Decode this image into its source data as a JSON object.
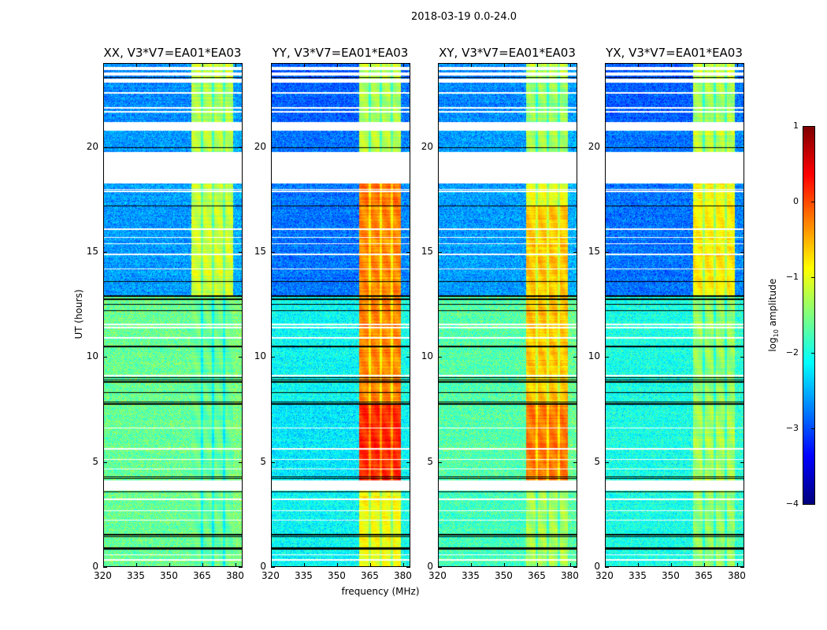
{
  "chart_data": {
    "type": "heatmap",
    "title": "2018-03-19 0.0-24.0",
    "xlabel": "frequency (MHz)",
    "ylabel": "UT (hours)",
    "xlim": [
      320,
      383.2
    ],
    "ylim": [
      0,
      24
    ],
    "xticks": [
      "320",
      "335",
      "350",
      "365",
      "380"
    ],
    "xtick_values": [
      320,
      335,
      350,
      365,
      380
    ],
    "yticks": [
      "0",
      "5",
      "10",
      "15",
      "20"
    ],
    "ytick_values": [
      0,
      5,
      10,
      15,
      20
    ],
    "colorbar": {
      "label_main": "log",
      "label_sub": "10",
      "label_rest": " amplitude",
      "range": [
        -4,
        1
      ],
      "ticks": [
        "1",
        "0",
        "−1",
        "−2",
        "−3",
        "−4"
      ],
      "tick_values": [
        1,
        0,
        -1,
        -2,
        -3,
        -4
      ],
      "colormap": "jet"
    },
    "panels": [
      {
        "title": "XX, V3*V7=EA01*EA03",
        "pol": "XX"
      },
      {
        "title": "YY, V3*V7=EA01*EA03",
        "pol": "YY"
      },
      {
        "title": "XY, V3*V7=EA01*EA03",
        "pol": "XY"
      },
      {
        "title": "YX, V3*V7=EA01*EA03",
        "pol": "YX"
      }
    ],
    "rfi_band_mhz": [
      360,
      379.3
    ],
    "rfi_subband_gaps_mhz": [
      365,
      370,
      375
    ],
    "segments": [
      {
        "t": [
          0,
          3.6
        ],
        "background": {
          "XX": -1.6,
          "YY": -2.1,
          "XY": -1.8,
          "YX": -2.0
        },
        "band": {
          "XX": -1.6,
          "YY": -0.9,
          "XY": -1.3,
          "YX": -1.4
        }
      },
      {
        "t": [
          4.1,
          7.8
        ],
        "background": {
          "XX": -1.6,
          "YY": -2.2,
          "XY": -1.7,
          "YX": -2.0
        },
        "band": {
          "XX": -1.6,
          "YY": 0.2,
          "XY": -0.2,
          "YX": -1.3
        }
      },
      {
        "t": [
          7.8,
          12.9
        ],
        "background": {
          "XX": -1.6,
          "YY": -2.1,
          "XY": -1.7,
          "YX": -2.0
        },
        "band": {
          "XX": -1.6,
          "YY": -0.3,
          "XY": -0.6,
          "YX": -1.4
        }
      },
      {
        "t": [
          12.9,
          17.2
        ],
        "background": {
          "XX": -2.6,
          "YY": -2.8,
          "XY": -2.6,
          "YX": -2.8
        },
        "band": {
          "XX": -1.1,
          "YY": -0.3,
          "XY": -0.6,
          "YX": -0.8
        }
      },
      {
        "t": [
          17.2,
          18.3
        ],
        "background": {
          "XX": -2.6,
          "YY": -2.8,
          "XY": -2.6,
          "YX": -2.8
        },
        "band": {
          "XX": -1.2,
          "YY": -0.2,
          "XY": -1.0,
          "YX": -0.9
        }
      },
      {
        "t": [
          19.8,
          20.8
        ],
        "background": {
          "XX": -2.6,
          "YY": -2.8,
          "XY": -2.6,
          "YX": -2.8
        },
        "band": {
          "XX": -1.2,
          "YY": -1.2,
          "XY": -1.3,
          "YX": -1.2
        }
      },
      {
        "t": [
          21.2,
          23.1
        ],
        "background": {
          "XX": -2.7,
          "YY": -2.9,
          "XY": -2.7,
          "YX": -2.9
        },
        "band": {
          "XX": -1.3,
          "YY": -1.3,
          "XY": -1.4,
          "YX": -1.3
        }
      },
      {
        "t": [
          23.3,
          24
        ],
        "background": {
          "XX": -2.7,
          "YY": -2.9,
          "XY": -2.7,
          "YX": -2.9
        },
        "band": {
          "XX": -1.1,
          "YY": -1.1,
          "XY": -1.2,
          "YX": -1.1
        }
      }
    ],
    "flagged_ranges_hours": [
      [
        3.6,
        4.1
      ],
      [
        18.3,
        19.8
      ],
      [
        20.8,
        21.2
      ],
      [
        23.1,
        23.3
      ],
      [
        23.45,
        23.6
      ],
      [
        23.7,
        23.85
      ]
    ],
    "flagged_lines_hours": [
      0.3,
      0.55,
      2.2,
      2.65,
      3.2,
      4.65,
      5.1,
      5.6,
      6.6,
      9.1,
      10.9,
      11.4,
      11.55,
      14.2,
      14.9,
      15.4,
      15.7,
      16.1,
      17.9,
      18.0,
      21.7,
      21.9,
      22.6
    ],
    "gap_lines_hours": [
      0.8,
      0.87,
      1.4,
      1.5,
      3.55,
      4.2,
      4.27,
      7.75,
      7.85,
      8.3,
      8.8,
      8.9,
      9.0,
      10.5,
      12.2,
      12.5,
      12.75,
      12.9,
      13.6,
      17.2,
      20.0,
      23.35
    ]
  }
}
